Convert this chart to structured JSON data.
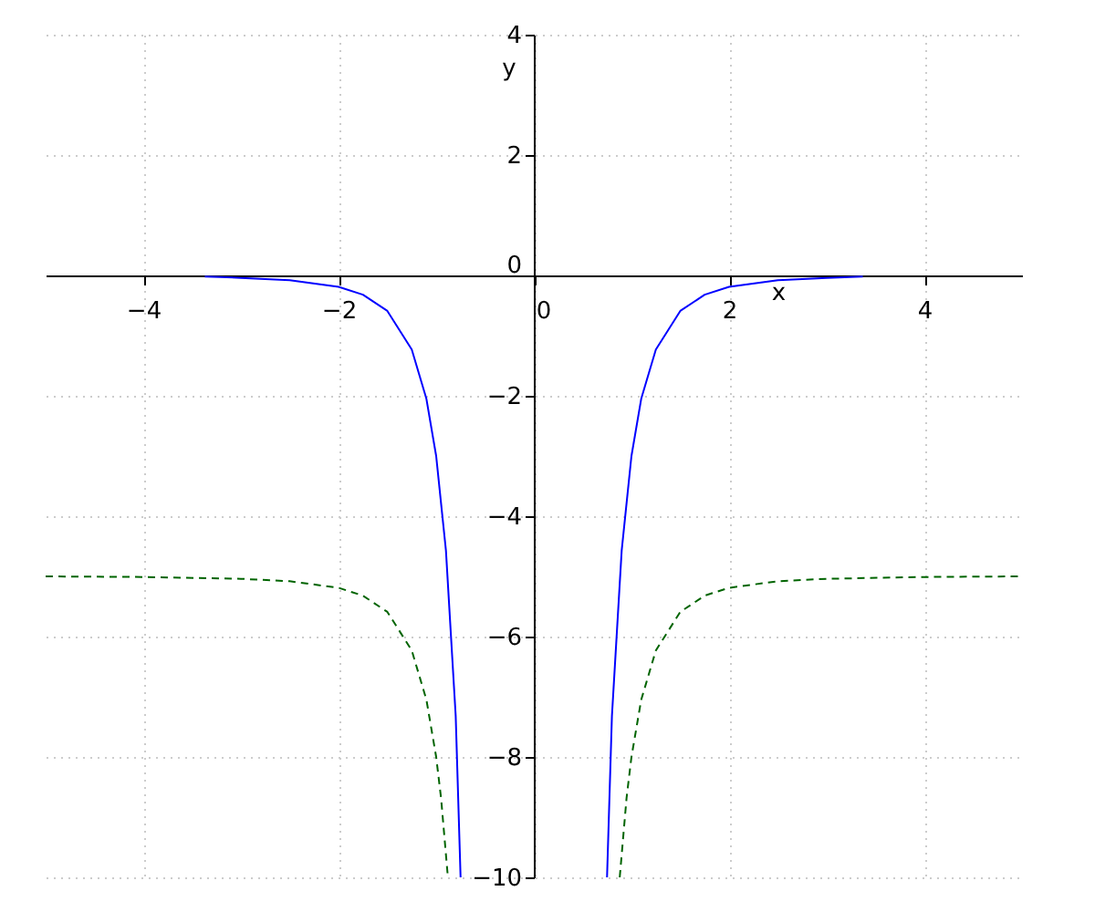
{
  "chart_data": {
    "type": "line",
    "xlabel": "x",
    "ylabel": "y",
    "xlim": [
      -5,
      5
    ],
    "ylim": [
      -10,
      4
    ],
    "xticks": [
      -4,
      -2,
      0,
      2,
      4
    ],
    "yticks": [
      -10,
      -8,
      -6,
      -4,
      -2,
      0,
      2,
      4
    ],
    "grid": true,
    "series": [
      {
        "color": "#0000ff",
        "line_style": "solid",
        "x": [
          -3.37,
          -3,
          -2.5,
          -2,
          -1.75,
          -1.5,
          -1.25,
          -1.1,
          -1,
          -0.9,
          -0.8,
          -0.75,
          0,
          0.75,
          0.8,
          0.9,
          1,
          1.1,
          1.25,
          1.5,
          1.75,
          2,
          2.5,
          3,
          3.37
        ],
        "values": [
          -0.02,
          -0.04,
          -0.08,
          -0.19,
          -0.32,
          -0.59,
          -1.23,
          -2.05,
          -3,
          -4.57,
          -7.32,
          -10,
          null,
          -10,
          -7.32,
          -4.57,
          -3,
          -2.05,
          -1.23,
          -0.59,
          -0.32,
          -0.19,
          -0.08,
          -0.04,
          -0.02
        ]
      },
      {
        "color": "#006400",
        "line_style": "dashed",
        "x": [
          -5,
          -4,
          -3,
          -2.5,
          -2,
          -1.75,
          -1.5,
          -1.25,
          -1.1,
          -1,
          -0.95,
          -0.88,
          0,
          0.88,
          0.95,
          1,
          1.1,
          1.25,
          1.5,
          1.75,
          2,
          2.5,
          3,
          4,
          5
        ],
        "values": [
          -5,
          -5.01,
          -5.04,
          -5.08,
          -5.19,
          -5.32,
          -5.59,
          -6.23,
          -7.05,
          -8,
          -8.68,
          -10,
          null,
          -10,
          -8.68,
          -8,
          -7.05,
          -6.23,
          -5.59,
          -5.32,
          -5.19,
          -5.08,
          -5.04,
          -5.01,
          -5
        ]
      }
    ]
  }
}
